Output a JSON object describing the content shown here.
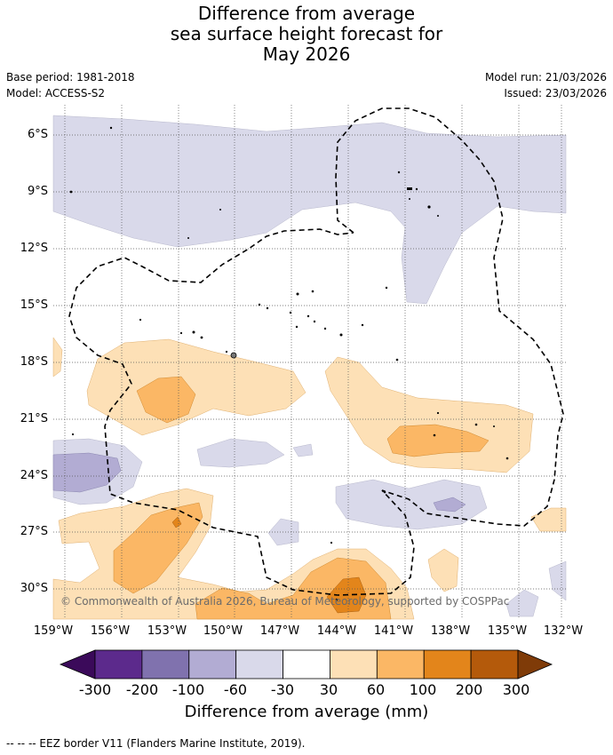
{
  "title": {
    "line1": "Difference from average",
    "line2": "sea surface height forecast for",
    "line3": "May 2026"
  },
  "meta": {
    "base_period": "Base period: 1981-2018",
    "model": "Model: ACCESS-S2",
    "model_run": "Model run: 21/03/2026",
    "issued": "Issued: 23/03/2026"
  },
  "map": {
    "lat_labels": [
      "6°S",
      "9°S",
      "12°S",
      "15°S",
      "18°S",
      "21°S",
      "24°S",
      "27°S",
      "30°S"
    ],
    "lon_labels": [
      "159°W",
      "156°W",
      "153°W",
      "150°W",
      "147°W",
      "144°W",
      "141°W",
      "138°W",
      "135°W",
      "132°W"
    ],
    "copyright": "© Commonwealth of Australia 2026, Bureau of Meteorology, supported by COSPPac"
  },
  "colorbar": {
    "labels": [
      "-300",
      "-200",
      "-100",
      "-60",
      "-30",
      "30",
      "60",
      "100",
      "200",
      "300"
    ],
    "colors": [
      "#3b0a5a",
      "#5c2a8c",
      "#8072ae",
      "#b2acd3",
      "#d9d9ea",
      "#ffffff",
      "#fde0b6",
      "#fbb765",
      "#e3851b",
      "#b45a0b",
      "#7f3b08"
    ],
    "title": "Difference from average (mm)"
  },
  "footnote": "--  --  -- EEZ border V11 (Flanders Marine Institute, 2019).",
  "colors": {
    "neg_light": "#d9d9ea",
    "neg_mid": "#b2acd3",
    "pos_light": "#fde0b6",
    "pos_mid": "#fbb765",
    "pos_strong": "#e3851b"
  }
}
